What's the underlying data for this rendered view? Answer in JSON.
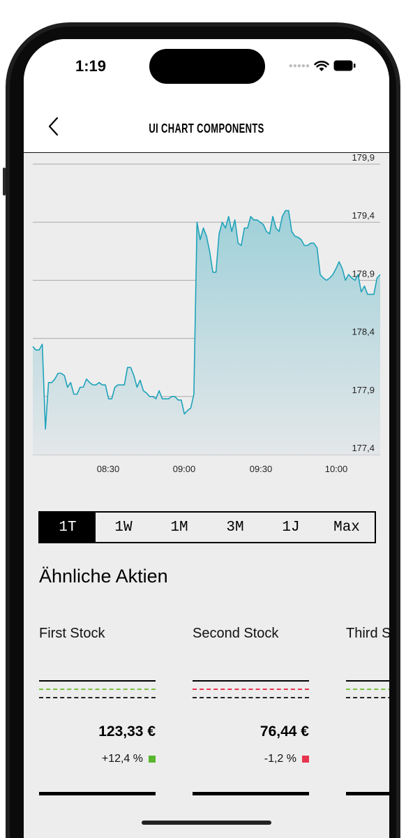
{
  "status_bar": {
    "time": "1:19"
  },
  "nav": {
    "title": "UI CHART COMPONENTS",
    "back_icon": "chevron-left-icon"
  },
  "chart_data": {
    "type": "area",
    "y_ticks": [
      "179,9",
      "179,4",
      "178,9",
      "178,4",
      "177,9",
      "177,4"
    ],
    "x_ticks": [
      "08:30",
      "09:00",
      "09:30",
      "10:00"
    ],
    "ylim": [
      177.4,
      179.9
    ],
    "grid": true,
    "color": "#1fa3b9",
    "y_values": [
      178.33,
      178.3,
      178.3,
      178.35,
      177.62,
      178.02,
      178.02,
      178.05,
      178.1,
      178.1,
      178.08,
      177.98,
      178.02,
      177.92,
      177.92,
      177.98,
      177.98,
      178.05,
      178.02,
      178.0,
      178.0,
      178.02,
      178.0,
      178.0,
      177.88,
      177.88,
      177.98,
      178.0,
      178.0,
      178.0,
      178.15,
      178.15,
      178.08,
      177.98,
      178.04,
      177.95,
      177.93,
      177.9,
      177.9,
      177.88,
      177.95,
      177.88,
      177.88,
      177.88,
      177.9,
      177.9,
      177.87,
      177.87,
      177.75,
      177.78,
      177.8,
      177.92,
      179.4,
      179.25,
      179.35,
      179.28,
      179.15,
      178.97,
      178.97,
      179.3,
      179.4,
      179.35,
      179.45,
      179.32,
      179.42,
      179.22,
      179.2,
      179.35,
      179.35,
      179.45,
      179.42,
      179.42,
      179.4,
      179.38,
      179.32,
      179.3,
      179.45,
      179.35,
      179.32,
      179.45,
      179.5,
      179.5,
      179.32,
      179.28,
      179.27,
      179.25,
      179.2,
      179.2,
      179.22,
      179.22,
      179.18,
      178.95,
      178.92,
      178.9,
      178.92,
      178.95,
      179.0,
      179.06,
      179.0,
      178.9,
      178.95,
      178.92,
      178.9,
      178.95,
      178.8,
      178.85,
      178.78,
      178.78,
      178.78,
      178.92,
      178.95
    ]
  },
  "periods": [
    "1T",
    "1W",
    "1M",
    "3M",
    "1J",
    "Max"
  ],
  "active_period": "1T",
  "section_title": "Ähnliche Aktien",
  "stocks": [
    {
      "name": "First Stock",
      "price": "123,33 €",
      "change": "+12,4 %",
      "color": "#59b72d"
    },
    {
      "name": "Second Stock",
      "price": "76,44 €",
      "change": "-1,2 %",
      "color": "#e8344e"
    },
    {
      "name": "Third Stock",
      "price": "",
      "change": "",
      "color": "#59b72d"
    }
  ]
}
